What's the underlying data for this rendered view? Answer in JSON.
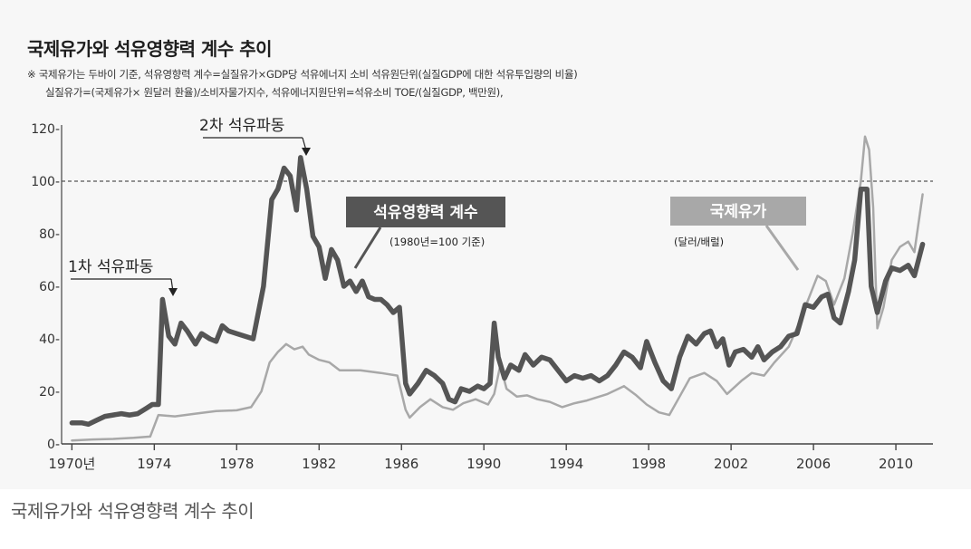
{
  "figure": {
    "title": "국제유가와 석유영향력 계수 추이",
    "note_line1": "※ 국제유가는 두바이 기준,  석유영향력 계수=실질유가×GDP당 석유에너지 소비 석유원단위(실질GDP에 대한 석유투입량의 비율)",
    "note_line2": "실질유가=(국제유가× 원달러 환율)/소비자물가지수, 석유에너지원단위=석유소비 TOE/(실질GDP, 백만원),",
    "caption": "국제유가와 석유영향력 계수 추이"
  },
  "chart_data": {
    "type": "line",
    "title": "국제유가와 석유영향력 계수 추이",
    "xlim": [
      1969.5,
      2011.8
    ],
    "ylim": [
      0,
      120
    ],
    "x_ticks": [
      {
        "value": 1970,
        "label": "1970년"
      },
      {
        "value": 1974,
        "label": "1974"
      },
      {
        "value": 1978,
        "label": "1978"
      },
      {
        "value": 1982,
        "label": "1982"
      },
      {
        "value": 1986,
        "label": "1986"
      },
      {
        "value": 1990,
        "label": "1990"
      },
      {
        "value": 1994,
        "label": "1994"
      },
      {
        "value": 1998,
        "label": "1998"
      },
      {
        "value": 2002,
        "label": "2002"
      },
      {
        "value": 2006,
        "label": "2006"
      },
      {
        "value": 2010,
        "label": "2010"
      }
    ],
    "y_ticks": [
      {
        "value": 0,
        "label": "0-"
      },
      {
        "value": 20,
        "label": "20-"
      },
      {
        "value": 40,
        "label": "40-"
      },
      {
        "value": 60,
        "label": "60-"
      },
      {
        "value": 80,
        "label": "80-"
      },
      {
        "value": 100,
        "label": "100-"
      },
      {
        "value": 120,
        "label": "120-"
      }
    ],
    "reference_line": {
      "y": 100,
      "style": "dashed"
    },
    "series": [
      {
        "name": "석유영향력 계수",
        "sublabel": "(1980년=100 기준)",
        "color": "#555555",
        "points": [
          [
            1970.0,
            8
          ],
          [
            1970.5,
            8
          ],
          [
            1970.8,
            7.5
          ],
          [
            1971.2,
            9
          ],
          [
            1971.6,
            10.5
          ],
          [
            1972.0,
            11
          ],
          [
            1972.4,
            11.5
          ],
          [
            1972.8,
            11
          ],
          [
            1973.2,
            11.5
          ],
          [
            1973.6,
            13.5
          ],
          [
            1973.9,
            15
          ],
          [
            1974.2,
            15
          ],
          [
            1974.4,
            55
          ],
          [
            1974.7,
            41
          ],
          [
            1975.0,
            38
          ],
          [
            1975.3,
            46
          ],
          [
            1975.6,
            43
          ],
          [
            1976.0,
            38
          ],
          [
            1976.3,
            42
          ],
          [
            1976.7,
            40
          ],
          [
            1977.0,
            39
          ],
          [
            1977.3,
            45
          ],
          [
            1977.6,
            43
          ],
          [
            1978.0,
            42
          ],
          [
            1978.4,
            41
          ],
          [
            1978.8,
            40
          ],
          [
            1979.3,
            60
          ],
          [
            1979.7,
            93
          ],
          [
            1980.0,
            97
          ],
          [
            1980.3,
            105
          ],
          [
            1980.6,
            102
          ],
          [
            1980.9,
            89
          ],
          [
            1981.1,
            109
          ],
          [
            1981.4,
            97
          ],
          [
            1981.7,
            79
          ],
          [
            1982.0,
            75
          ],
          [
            1982.3,
            63
          ],
          [
            1982.6,
            74
          ],
          [
            1982.9,
            70
          ],
          [
            1983.2,
            60
          ],
          [
            1983.5,
            62
          ],
          [
            1983.8,
            58
          ],
          [
            1984.1,
            62
          ],
          [
            1984.4,
            56
          ],
          [
            1984.7,
            55
          ],
          [
            1985.0,
            55
          ],
          [
            1985.3,
            53
          ],
          [
            1985.6,
            50
          ],
          [
            1985.9,
            52
          ],
          [
            1986.2,
            23
          ],
          [
            1986.4,
            19
          ],
          [
            1986.8,
            23
          ],
          [
            1987.2,
            28
          ],
          [
            1987.6,
            26
          ],
          [
            1988.0,
            23
          ],
          [
            1988.3,
            17
          ],
          [
            1988.6,
            16
          ],
          [
            1988.9,
            21
          ],
          [
            1989.3,
            20
          ],
          [
            1989.7,
            22
          ],
          [
            1990.0,
            21
          ],
          [
            1990.3,
            23
          ],
          [
            1990.5,
            46
          ],
          [
            1990.7,
            33
          ],
          [
            1991.0,
            25
          ],
          [
            1991.3,
            30
          ],
          [
            1991.7,
            28
          ],
          [
            1992.0,
            34
          ],
          [
            1992.4,
            30
          ],
          [
            1992.8,
            33
          ],
          [
            1993.2,
            32
          ],
          [
            1993.6,
            28
          ],
          [
            1994.0,
            24
          ],
          [
            1994.4,
            26
          ],
          [
            1994.8,
            25
          ],
          [
            1995.2,
            26
          ],
          [
            1995.6,
            24
          ],
          [
            1996.0,
            26
          ],
          [
            1996.4,
            30
          ],
          [
            1996.8,
            35
          ],
          [
            1997.2,
            33
          ],
          [
            1997.6,
            29
          ],
          [
            1997.9,
            39
          ],
          [
            1998.3,
            31
          ],
          [
            1998.7,
            24
          ],
          [
            1999.1,
            21
          ],
          [
            1999.5,
            33
          ],
          [
            1999.9,
            41
          ],
          [
            2000.3,
            38
          ],
          [
            2000.7,
            42
          ],
          [
            2001.0,
            43
          ],
          [
            2001.3,
            37
          ],
          [
            2001.6,
            40
          ],
          [
            2001.9,
            30
          ],
          [
            2002.2,
            35
          ],
          [
            2002.6,
            36
          ],
          [
            2003.0,
            33
          ],
          [
            2003.3,
            37
          ],
          [
            2003.6,
            32
          ],
          [
            2004.0,
            35
          ],
          [
            2004.4,
            37
          ],
          [
            2004.8,
            41
          ],
          [
            2005.2,
            42
          ],
          [
            2005.6,
            53
          ],
          [
            2006.0,
            52
          ],
          [
            2006.4,
            56
          ],
          [
            2006.7,
            57
          ],
          [
            2007.0,
            48
          ],
          [
            2007.3,
            46
          ],
          [
            2007.7,
            58
          ],
          [
            2008.0,
            70
          ],
          [
            2008.3,
            97
          ],
          [
            2008.6,
            97
          ],
          [
            2008.8,
            60
          ],
          [
            2009.1,
            50
          ],
          [
            2009.5,
            62
          ],
          [
            2009.8,
            67
          ],
          [
            2010.2,
            66
          ],
          [
            2010.6,
            68
          ],
          [
            2010.9,
            64
          ],
          [
            2011.3,
            76
          ]
        ]
      },
      {
        "name": "국제유가",
        "sublabel": "(달러/배럴)",
        "color": "#a8a8a8",
        "points": [
          [
            1970.0,
            1.3
          ],
          [
            1971.0,
            1.7
          ],
          [
            1972.0,
            1.9
          ],
          [
            1973.0,
            2.3
          ],
          [
            1973.8,
            2.8
          ],
          [
            1974.2,
            11
          ],
          [
            1975.0,
            10.5
          ],
          [
            1976.0,
            11.5
          ],
          [
            1977.0,
            12.5
          ],
          [
            1978.0,
            12.8
          ],
          [
            1978.7,
            14
          ],
          [
            1979.2,
            20
          ],
          [
            1979.6,
            31
          ],
          [
            1980.0,
            35
          ],
          [
            1980.4,
            38
          ],
          [
            1980.8,
            36
          ],
          [
            1981.2,
            37
          ],
          [
            1981.5,
            34
          ],
          [
            1982.0,
            32
          ],
          [
            1982.5,
            31
          ],
          [
            1983.0,
            28
          ],
          [
            1984.0,
            28
          ],
          [
            1985.0,
            27
          ],
          [
            1985.8,
            26
          ],
          [
            1986.2,
            13
          ],
          [
            1986.4,
            10
          ],
          [
            1986.9,
            14
          ],
          [
            1987.4,
            17
          ],
          [
            1988.0,
            14
          ],
          [
            1988.5,
            13
          ],
          [
            1989.0,
            15.5
          ],
          [
            1989.6,
            17
          ],
          [
            1990.2,
            15
          ],
          [
            1990.5,
            19
          ],
          [
            1990.8,
            30
          ],
          [
            1991.1,
            21
          ],
          [
            1991.6,
            18
          ],
          [
            1992.1,
            18.5
          ],
          [
            1992.6,
            17
          ],
          [
            1993.2,
            16
          ],
          [
            1993.8,
            14
          ],
          [
            1994.4,
            15.5
          ],
          [
            1995.0,
            16.5
          ],
          [
            1996.0,
            19
          ],
          [
            1996.8,
            22
          ],
          [
            1997.4,
            18.5
          ],
          [
            1997.9,
            15
          ],
          [
            1998.5,
            12
          ],
          [
            1999.0,
            11
          ],
          [
            1999.5,
            18
          ],
          [
            2000.0,
            25
          ],
          [
            2000.7,
            27
          ],
          [
            2001.3,
            24
          ],
          [
            2001.8,
            19
          ],
          [
            2002.5,
            24
          ],
          [
            2003.0,
            27
          ],
          [
            2003.6,
            26
          ],
          [
            2004.1,
            31
          ],
          [
            2004.8,
            37
          ],
          [
            2005.3,
            46
          ],
          [
            2005.8,
            56
          ],
          [
            2006.2,
            64
          ],
          [
            2006.6,
            62
          ],
          [
            2007.0,
            53
          ],
          [
            2007.5,
            63
          ],
          [
            2007.9,
            80
          ],
          [
            2008.3,
            100
          ],
          [
            2008.5,
            117
          ],
          [
            2008.7,
            112
          ],
          [
            2008.9,
            90
          ],
          [
            2009.1,
            44
          ],
          [
            2009.4,
            52
          ],
          [
            2009.8,
            70
          ],
          [
            2010.2,
            75
          ],
          [
            2010.6,
            77
          ],
          [
            2010.9,
            73
          ],
          [
            2011.3,
            95
          ]
        ]
      }
    ],
    "annotations": [
      {
        "text": "1차 석유파동",
        "target": [
          1974.4,
          55
        ]
      },
      {
        "text": "2차 석유파동",
        "target": [
          1981.1,
          109
        ]
      }
    ]
  }
}
